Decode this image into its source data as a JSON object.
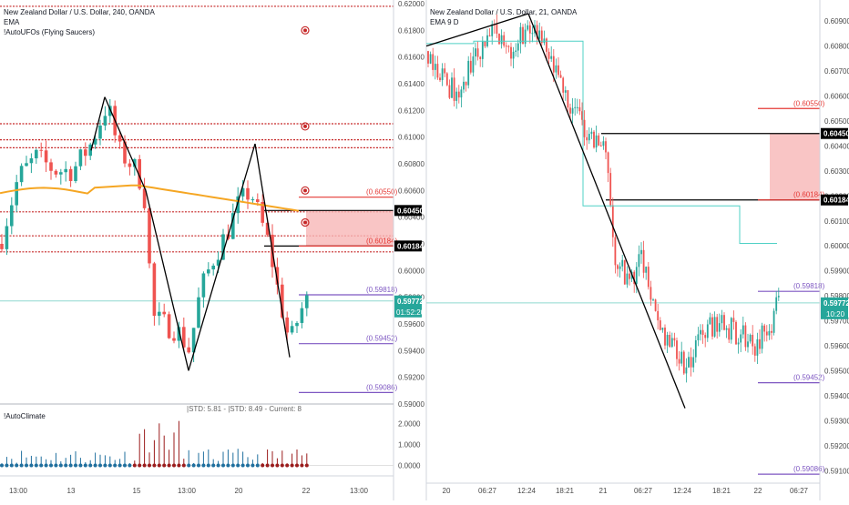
{
  "chart_data": [
    {
      "type": "candlestick",
      "title": "New Zealand Dollar / U.S. Dollar, 240, OANDA",
      "indicators": [
        "EMA",
        "!AutoUFOs (Flying Saucers)"
      ],
      "x_ticks": [
        "13:00",
        "13",
        "15",
        "13:00",
        "20",
        "22",
        "13:00"
      ],
      "y_ticks": [
        "0.62000",
        "0.61800",
        "0.61600",
        "0.61400",
        "0.61200",
        "0.61000",
        "0.60800",
        "0.60600",
        "0.60400",
        "0.60200",
        "0.60000",
        "0.59800",
        "0.59600",
        "0.59400",
        "0.59200",
        "0.59000"
      ],
      "ylim": [
        0.59,
        0.62
      ],
      "zigzag": [
        [
          0.609,
          0.613
        ],
        [
          0.613,
          0.606
        ],
        [
          0.606,
          0.5925
        ],
        [
          0.5925,
          0.6095
        ],
        [
          0.6095,
          0.5935
        ]
      ],
      "horizontal_levels": [
        "0.60550",
        "0.60184",
        "0.59818",
        "0.59452",
        "0.59086"
      ],
      "zone": {
        "top": "0.60450",
        "bottom": "0.60184"
      },
      "price_boxes": [
        "0.60450",
        "0.60184"
      ],
      "last_price": "0.59772",
      "countdown": "01:52:20",
      "subpanel": {
        "name": "!AutoClimate",
        "stats": "|STD: 5.81 - |STD: 8.49 - Current: 8",
        "y_ticks": [
          "2.0000",
          "1.0000",
          "0.0000"
        ]
      }
    },
    {
      "type": "candlestick",
      "title": "New Zealand Dollar / U.S. Dollar, 21, OANDA",
      "indicators": [
        "EMA 9 D"
      ],
      "x_ticks": [
        "20",
        "06:27",
        "12:24",
        "18:21",
        "21",
        "06:27",
        "12:24",
        "18:21",
        "22",
        "06:27"
      ],
      "y_ticks": [
        "0.60900",
        "0.60800",
        "0.60700",
        "0.60600",
        "0.60500",
        "0.60400",
        "0.60300",
        "0.60200",
        "0.60100",
        "0.60000",
        "0.59900",
        "0.59800",
        "0.59700",
        "0.59600",
        "0.59500",
        "0.59400",
        "0.59300",
        "0.59200",
        "0.59100"
      ],
      "ylim": [
        0.5905,
        0.6097
      ],
      "zigzag": [
        [
          0.608,
          0.6093
        ],
        [
          0.6093,
          0.5935
        ]
      ],
      "horizontal_levels": [
        "0.60550",
        "0.60184",
        "0.59818",
        "0.59452",
        "0.59086"
      ],
      "zone": {
        "top": "0.60450",
        "bottom": "0.60184"
      },
      "price_boxes": [
        "0.60450",
        "0.60184"
      ],
      "last_price": "0.59772",
      "countdown": "10:20"
    }
  ],
  "colors": {
    "up": "#26a69a",
    "down": "#ef5350",
    "ema": "#f5a623",
    "ema9": "#4fd1c5",
    "zigzag": "#000000",
    "red_dotted": "#c62828",
    "level_red": "#e53935",
    "level_purple": "#7e57c2",
    "zone": "#f7b7b7",
    "last": "#26a69a",
    "climate_blue": "#1f6f9e",
    "climate_red": "#9b1c1c"
  }
}
